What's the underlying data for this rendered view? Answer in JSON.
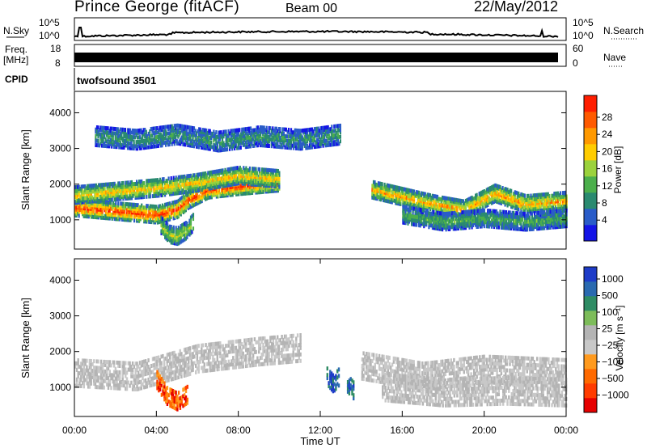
{
  "header": {
    "station": "Prince George (fitACF)",
    "beam": "Beam 00",
    "date": "22/May/2012"
  },
  "summary_panel": {
    "left_labels": {
      "nsky": "N.Sky",
      "freq": "Freq.",
      "freq_unit": "[MHz]",
      "cpid": "CPID"
    },
    "right_labels": {
      "nsearch": "N.Search",
      "nave": "Nave"
    },
    "nsky_ticks": {
      "top": "10^5",
      "bottom": "10^0"
    },
    "freq_ticks": {
      "top": "18",
      "bottom": "8"
    },
    "nave_ticks": {
      "top": "60",
      "bottom": "0"
    },
    "cpid_text": "twofsound 3501"
  },
  "chart_data": [
    {
      "type": "heatmap",
      "name": "power",
      "xlabel": "",
      "ylabel": "Slant Range [km]",
      "xlim": [
        0,
        24
      ],
      "ylim": [
        180,
        4600
      ],
      "yticks": [
        1000,
        2000,
        3000,
        4000
      ],
      "colorbar": {
        "label": "Power [dB]",
        "ticks": [
          "4",
          "8",
          "12",
          "16",
          "20",
          "24",
          "28"
        ],
        "colors": [
          "#1414e6",
          "#2a5cc8",
          "#2a8a70",
          "#4caf4c",
          "#9bd23c",
          "#ffcc00",
          "#ff9900",
          "#ff5a00",
          "#ff1e00"
        ]
      },
      "bands": [
        {
          "t": [
            0.0,
            2.0,
            4.0,
            5.0,
            5.5,
            6.5,
            8.0,
            10.0
          ],
          "range": [
            1400,
            1300,
            1200,
            1350,
            1600,
            1900,
            2000,
            2100
          ],
          "power": 26
        },
        {
          "t": [
            0.0,
            2.0,
            4.0,
            6.0,
            8.0,
            10.0
          ],
          "range": [
            1750,
            1850,
            1950,
            2100,
            2300,
            2200
          ],
          "power": 18
        },
        {
          "t": [
            4.2,
            4.6,
            5.0,
            5.4,
            5.8
          ],
          "range": [
            900,
            650,
            600,
            750,
            1000
          ],
          "power": 14
        },
        {
          "t": [
            14.5,
            16.0,
            17.5,
            19.0,
            20.5,
            22.0,
            24.0
          ],
          "range": [
            1900,
            1700,
            1500,
            1350,
            1800,
            1500,
            1600
          ],
          "power": 20
        },
        {
          "t": [
            16.0,
            18.0,
            20.0,
            22.0,
            24.0
          ],
          "range": [
            1200,
            1000,
            1100,
            1000,
            1100
          ],
          "power": 9
        },
        {
          "t": [
            1.0,
            3.0,
            5.0,
            7.0,
            9.0,
            11.0,
            13.0
          ],
          "range": [
            3400,
            3300,
            3450,
            3250,
            3400,
            3300,
            3450
          ],
          "power": 7
        }
      ]
    },
    {
      "type": "heatmap",
      "name": "velocity",
      "xlabel": "Time UT",
      "ylabel": "Slant Range [km]",
      "xlim": [
        0,
        24
      ],
      "ylim": [
        180,
        4600
      ],
      "xticks": [
        "00:00",
        "04:00",
        "08:00",
        "12:00",
        "16:00",
        "20:00",
        "00:00"
      ],
      "yticks": [
        1000,
        2000,
        3000,
        4000
      ],
      "colorbar": {
        "label": "Velocity [m s⁻¹]",
        "ticks": [
          "1000",
          "500",
          "100",
          "25",
          "−25",
          "−100",
          "−500",
          "−1000"
        ],
        "colors": [
          "#1e3cc8",
          "#2a6ab0",
          "#2f8c64",
          "#7dbc5a",
          "#b4b4b4",
          "#c8c8c8",
          "#ff9a1e",
          "#ff6a00",
          "#ff3c00",
          "#e60000"
        ]
      },
      "features": [
        {
          "kind": "ground",
          "t": [
            0.0,
            3.0,
            6.0,
            9.0,
            11.0
          ],
          "range": [
            1500,
            1400,
            1900,
            2100,
            2200
          ]
        },
        {
          "kind": "ground",
          "t": [
            14.0,
            17.0,
            20.0,
            24.0
          ],
          "range": [
            1700,
            1400,
            1600,
            1500
          ]
        },
        {
          "kind": "ground",
          "t": [
            15.0,
            18.0,
            21.0,
            24.0
          ],
          "range": [
            1100,
            950,
            1000,
            950
          ]
        },
        {
          "kind": "negative",
          "t": [
            4.0,
            4.5,
            5.0,
            5.5
          ],
          "range": [
            1300,
            850,
            700,
            900
          ],
          "velocity": -800
        },
        {
          "kind": "positive",
          "t": [
            12.3,
            12.6,
            12.9
          ],
          "range": [
            1400,
            1200,
            1400
          ],
          "velocity": 600
        },
        {
          "kind": "positive",
          "t": [
            13.3,
            13.6
          ],
          "range": [
            1200,
            1000
          ],
          "velocity": 120
        }
      ]
    }
  ]
}
